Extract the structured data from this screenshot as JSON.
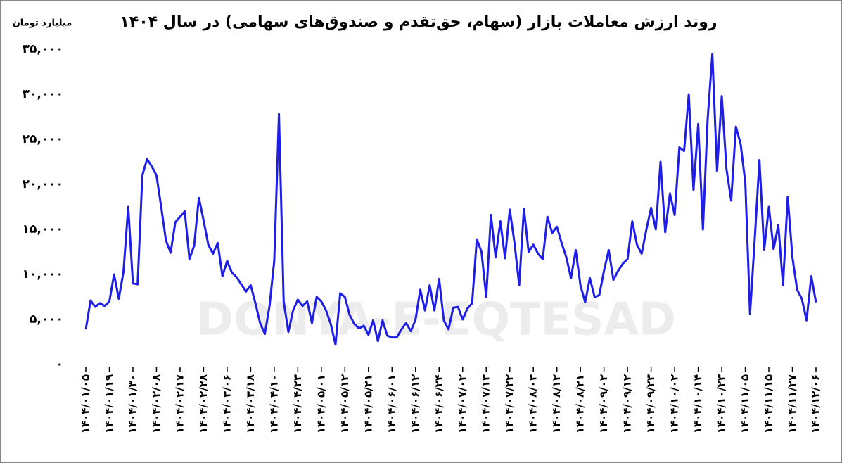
{
  "chart_data": {
    "type": "line",
    "title": "روند ارزش معاملات بازار (سهام، حق‌تقدم و صندوق‌های سهامی) در سال ۱۴۰۴",
    "y_label": "میلیارد تومان",
    "watermark": "DONYA-E-EQTESAD",
    "categories": [
      "۱۴۰۴/۰۱/۰۵",
      null,
      null,
      null,
      null,
      "۱۴۰۴/۰۱/۱۹",
      null,
      null,
      null,
      null,
      "۱۴۰۴/۰۱/۳۰",
      null,
      null,
      null,
      null,
      "۱۴۰۴/۰۲/۰۸",
      null,
      null,
      null,
      null,
      "۱۴۰۴/۰۲/۱۷",
      null,
      null,
      null,
      null,
      "۱۴۰۴/۰۲/۲۸",
      null,
      null,
      null,
      null,
      "۱۴۰۴/۰۳/۰۶",
      null,
      null,
      null,
      null,
      "۱۴۰۴/۰۳/۱۸",
      null,
      null,
      null,
      null,
      "۱۴۰۴/۰۴/۱۰",
      null,
      null,
      null,
      null,
      "۱۴۰۴/۰۴/۲۳",
      null,
      null,
      null,
      null,
      "۱۴۰۴/۰۵/۰۱",
      null,
      null,
      null,
      null,
      "۱۴۰۴/۰۵/۱۲",
      null,
      null,
      null,
      null,
      "۱۴۰۴/۰۵/۲۱",
      null,
      null,
      null,
      null,
      "۱۴۰۴/۰۶/۰۱",
      null,
      null,
      null,
      null,
      "۱۴۰۴/۰۶/۱۲",
      null,
      null,
      null,
      null,
      "۱۴۰۴/۰۶/۲۴",
      null,
      null,
      null,
      null,
      "۱۴۰۴/۰۷/۰۲",
      null,
      null,
      null,
      null,
      "۱۴۰۴/۰۷/۱۳",
      null,
      null,
      null,
      null,
      "۱۴۰۴/۰۷/۲۲",
      null,
      null,
      null,
      null,
      "۱۴۰۴/۰۸/۰۳",
      null,
      null,
      null,
      null,
      "۱۴۰۴/۰۸/۱۲",
      null,
      null,
      null,
      null,
      "۱۴۰۴/۰۸/۲۱",
      null,
      null,
      null,
      null,
      "۱۴۰۴/۰۹/۰۲",
      null,
      null,
      null,
      null,
      "۱۴۰۴/۰۹/۱۲",
      null,
      null,
      null,
      null,
      "۱۴۰۴/۰۹/۲۳",
      null,
      null,
      null,
      null,
      "۱۴۰۴/۱۰/۰۲",
      null,
      null,
      null,
      null,
      "۱۴۰۴/۱۰/۱۴",
      null,
      null,
      null,
      null,
      "۱۴۰۴/۱۰/۲۳",
      null,
      null,
      null,
      null,
      "۱۴۰۴/۱۱/۰۵",
      null,
      null,
      null,
      null,
      "۱۴۰۴/۱۱/۱۵",
      null,
      null,
      null,
      null,
      "۱۴۰۴/۱۱/۲۷",
      null,
      null,
      null,
      null,
      "۱۴۰۴/۱۲/۰۶"
    ],
    "series": [
      {
        "color": "#1e1ee8",
        "values": [
          3900,
          7100,
          6400,
          6800,
          6500,
          7000,
          10000,
          7300,
          10300,
          17500,
          9000,
          8900,
          21000,
          22800,
          22000,
          21000,
          17500,
          13800,
          12400,
          15800,
          16400,
          17000,
          11700,
          13200,
          18500,
          16000,
          13300,
          12300,
          13500,
          9800,
          11500,
          10200,
          9700,
          8900,
          8100,
          8800,
          6800,
          4600,
          3400,
          6500,
          11500,
          27800,
          7000,
          3600,
          6000,
          7200,
          6500,
          7000,
          4600,
          7500,
          7000,
          6000,
          4500,
          2200,
          7900,
          7500,
          5500,
          4500,
          4000,
          4300,
          3300,
          4900,
          2600,
          4900,
          3200,
          3000,
          3000,
          3900,
          4600,
          3700,
          5000,
          8300,
          6000,
          8800,
          6000,
          9500,
          4900,
          3900,
          6300,
          6400,
          5000,
          6200,
          6800,
          13900,
          12500,
          7500,
          16600,
          11900,
          15900,
          11800,
          17200,
          13500,
          8800,
          17300,
          12500,
          13300,
          12300,
          11700,
          16400,
          14600,
          15300,
          13500,
          11900,
          9600,
          12700,
          8800,
          6900,
          9600,
          7500,
          7700,
          10400,
          12700,
          9400,
          10400,
          11200,
          11700,
          15900,
          13300,
          12300,
          15000,
          17400,
          15000,
          22500,
          14700,
          19000,
          16600,
          24100,
          23700,
          30000,
          19400,
          26700,
          15000,
          27200,
          34500,
          21500,
          29800,
          21700,
          18200,
          26400,
          24500,
          20200,
          5600,
          13900,
          22700,
          12700,
          17500,
          12800,
          15500,
          8800,
          18600,
          11900,
          8300,
          7300,
          4900,
          9800,
          6900
        ]
      }
    ],
    "ylim": [
      0,
      35000
    ],
    "yticks": [
      {
        "value": 0,
        "label": "۰"
      },
      {
        "value": 5000,
        "label": "۵,۰۰۰"
      },
      {
        "value": 10000,
        "label": "۱۰,۰۰۰"
      },
      {
        "value": 15000,
        "label": "۱۵,۰۰۰"
      },
      {
        "value": 20000,
        "label": "۲۰,۰۰۰"
      },
      {
        "value": 25000,
        "label": "۲۵,۰۰۰"
      },
      {
        "value": 30000,
        "label": "۳۰,۰۰۰"
      },
      {
        "value": 35000,
        "label": "۳۵,۰۰۰"
      }
    ],
    "grid": false
  }
}
